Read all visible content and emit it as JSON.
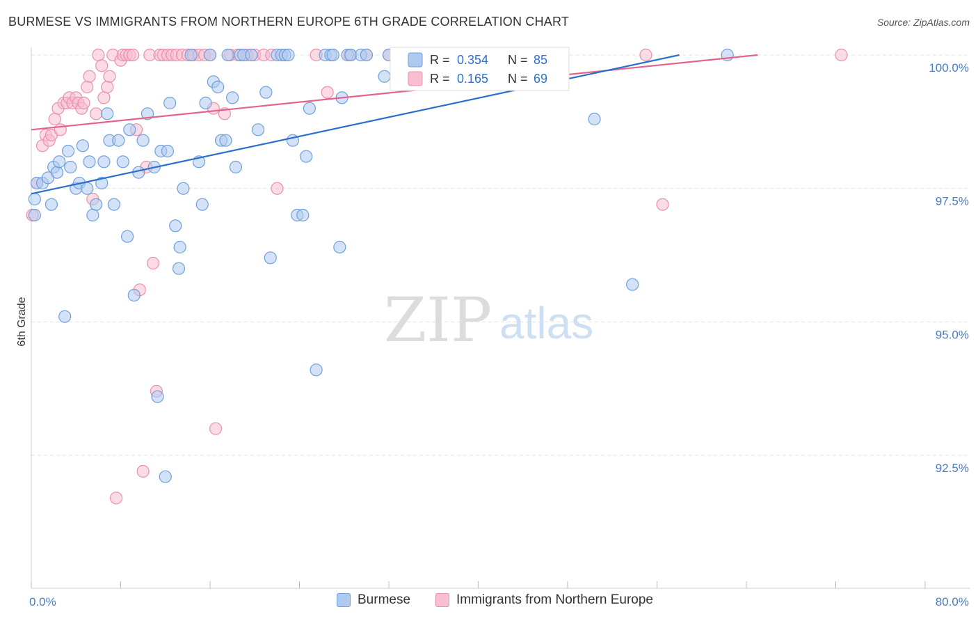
{
  "title": "BURMESE VS IMMIGRANTS FROM NORTHERN EUROPE 6TH GRADE CORRELATION CHART",
  "source": "Source: ZipAtlas.com",
  "watermark": {
    "zip": "ZIP",
    "atlas": "atlas"
  },
  "colors": {
    "burmese_fill": "#aecbef",
    "burmese_stroke": "#6f9fdc",
    "burmese_line": "#2a6fcc",
    "northern_fill": "#f7bfd0",
    "northern_stroke": "#ea8fab",
    "northern_line": "#e4628e",
    "tick_color": "#4a7ec7",
    "grid": "#e3e3e3"
  },
  "legend_box": {
    "burmese": {
      "r_label": "R =",
      "r_value": "0.354",
      "n_label": "N =",
      "n_value": "85"
    },
    "northern": {
      "r_label": "R =",
      "r_value": "0.165",
      "n_label": "N =",
      "n_value": "69"
    }
  },
  "chart_data": {
    "type": "scatter",
    "title": "BURMESE VS IMMIGRANTS FROM NORTHERN EUROPE 6TH GRADE CORRELATION CHART",
    "xlabel": "",
    "ylabel": "6th Grade",
    "xlim": [
      0,
      80
    ],
    "ylim": [
      90.2,
      100.3
    ],
    "x_tick_labels": [
      "0.0%",
      "80.0%"
    ],
    "y_ticks": [
      {
        "value": 100.0,
        "label": "100.0%"
      },
      {
        "value": 97.5,
        "label": "97.5%"
      },
      {
        "value": 95.0,
        "label": "95.0%"
      },
      {
        "value": 92.5,
        "label": "92.5%"
      }
    ],
    "series": [
      {
        "name": "Burmese",
        "r": 0.354,
        "n": 85,
        "trend": {
          "x0": 0.0,
          "y0": 97.4,
          "x1": 58.0,
          "y1": 100.0
        },
        "points": [
          [
            0.3,
            97.3
          ],
          [
            0.3,
            97.0
          ],
          [
            0.5,
            97.6
          ],
          [
            1.0,
            97.6
          ],
          [
            1.5,
            97.7
          ],
          [
            1.8,
            97.2
          ],
          [
            2.0,
            97.9
          ],
          [
            2.3,
            97.8
          ],
          [
            2.5,
            98.0
          ],
          [
            3.0,
            95.1
          ],
          [
            3.3,
            98.2
          ],
          [
            3.5,
            97.9
          ],
          [
            4.0,
            97.5
          ],
          [
            4.3,
            97.6
          ],
          [
            4.6,
            98.3
          ],
          [
            5.0,
            97.5
          ],
          [
            5.2,
            98.0
          ],
          [
            5.5,
            97.0
          ],
          [
            5.8,
            97.2
          ],
          [
            6.3,
            97.6
          ],
          [
            6.5,
            98.0
          ],
          [
            6.8,
            98.9
          ],
          [
            7.0,
            98.4
          ],
          [
            7.4,
            97.2
          ],
          [
            7.8,
            98.4
          ],
          [
            8.2,
            98.0
          ],
          [
            8.6,
            96.6
          ],
          [
            8.8,
            98.6
          ],
          [
            9.2,
            95.5
          ],
          [
            9.6,
            97.8
          ],
          [
            10.0,
            98.4
          ],
          [
            10.4,
            98.9
          ],
          [
            11.0,
            97.9
          ],
          [
            11.3,
            93.6
          ],
          [
            11.6,
            98.2
          ],
          [
            12.0,
            92.1
          ],
          [
            12.2,
            98.2
          ],
          [
            12.4,
            99.1
          ],
          [
            12.9,
            96.8
          ],
          [
            13.2,
            96.0
          ],
          [
            13.3,
            96.4
          ],
          [
            13.6,
            97.5
          ],
          [
            14.3,
            100.0
          ],
          [
            15.0,
            98.0
          ],
          [
            15.3,
            97.2
          ],
          [
            15.6,
            99.1
          ],
          [
            16.0,
            100.0
          ],
          [
            16.3,
            99.5
          ],
          [
            16.7,
            99.4
          ],
          [
            17.0,
            98.4
          ],
          [
            17.4,
            98.4
          ],
          [
            17.6,
            100.0
          ],
          [
            18.0,
            99.2
          ],
          [
            18.3,
            97.9
          ],
          [
            18.7,
            100.0
          ],
          [
            19.0,
            100.0
          ],
          [
            19.7,
            100.0
          ],
          [
            20.3,
            98.6
          ],
          [
            21.0,
            99.3
          ],
          [
            21.4,
            96.2
          ],
          [
            22.0,
            100.0
          ],
          [
            22.4,
            100.0
          ],
          [
            22.7,
            100.0
          ],
          [
            23.0,
            100.0
          ],
          [
            23.4,
            98.4
          ],
          [
            23.8,
            97.0
          ],
          [
            24.3,
            97.0
          ],
          [
            24.6,
            98.1
          ],
          [
            24.9,
            99.0
          ],
          [
            26.3,
            100.0
          ],
          [
            25.5,
            94.1
          ],
          [
            26.8,
            100.0
          ],
          [
            27.0,
            100.0
          ],
          [
            27.6,
            96.4
          ],
          [
            27.8,
            99.2
          ],
          [
            28.3,
            100.0
          ],
          [
            28.6,
            100.0
          ],
          [
            29.5,
            100.0
          ],
          [
            30.0,
            100.0
          ],
          [
            31.6,
            99.6
          ],
          [
            32.0,
            100.0
          ],
          [
            33.2,
            100.0
          ],
          [
            50.4,
            98.8
          ],
          [
            53.8,
            95.7
          ],
          [
            62.3,
            100.0
          ]
        ]
      },
      {
        "name": "Immigrants from Northern Europe",
        "r": 0.165,
        "n": 69,
        "trend": {
          "x0": 0.0,
          "y0": 98.6,
          "x1": 65.0,
          "y1": 100.0
        },
        "points": [
          [
            0.1,
            97.0
          ],
          [
            0.5,
            97.6
          ],
          [
            1.0,
            98.3
          ],
          [
            1.3,
            98.5
          ],
          [
            1.6,
            98.4
          ],
          [
            1.8,
            98.5
          ],
          [
            2.1,
            98.8
          ],
          [
            2.4,
            99.0
          ],
          [
            2.6,
            98.6
          ],
          [
            2.9,
            99.1
          ],
          [
            3.2,
            99.1
          ],
          [
            3.4,
            99.2
          ],
          [
            3.7,
            99.1
          ],
          [
            4.0,
            99.2
          ],
          [
            4.2,
            99.1
          ],
          [
            4.5,
            99.0
          ],
          [
            4.7,
            99.1
          ],
          [
            5.0,
            99.4
          ],
          [
            5.2,
            99.6
          ],
          [
            5.5,
            97.3
          ],
          [
            5.8,
            98.9
          ],
          [
            6.0,
            100.0
          ],
          [
            6.3,
            99.8
          ],
          [
            6.5,
            99.2
          ],
          [
            6.8,
            99.4
          ],
          [
            7.0,
            99.6
          ],
          [
            7.3,
            100.0
          ],
          [
            7.6,
            91.7
          ],
          [
            8.0,
            99.9
          ],
          [
            8.2,
            100.0
          ],
          [
            8.5,
            100.0
          ],
          [
            8.8,
            100.0
          ],
          [
            9.1,
            100.0
          ],
          [
            9.4,
            98.6
          ],
          [
            9.7,
            95.6
          ],
          [
            10.0,
            92.2
          ],
          [
            10.3,
            97.9
          ],
          [
            10.6,
            100.0
          ],
          [
            10.9,
            96.1
          ],
          [
            11.2,
            93.7
          ],
          [
            11.5,
            100.0
          ],
          [
            11.8,
            100.0
          ],
          [
            12.2,
            100.0
          ],
          [
            12.6,
            100.0
          ],
          [
            13.0,
            100.0
          ],
          [
            13.5,
            100.0
          ],
          [
            14.0,
            100.0
          ],
          [
            14.5,
            100.0
          ],
          [
            15.0,
            100.0
          ],
          [
            15.5,
            100.0
          ],
          [
            16.0,
            100.0
          ],
          [
            16.3,
            99.0
          ],
          [
            16.5,
            93.0
          ],
          [
            17.3,
            98.9
          ],
          [
            17.8,
            100.0
          ],
          [
            18.5,
            100.0
          ],
          [
            19.3,
            100.0
          ],
          [
            20.0,
            100.0
          ],
          [
            20.8,
            100.0
          ],
          [
            21.5,
            100.0
          ],
          [
            22.0,
            97.5
          ],
          [
            25.5,
            100.0
          ],
          [
            26.5,
            99.3
          ],
          [
            28.5,
            100.0
          ],
          [
            30.0,
            100.0
          ],
          [
            32.0,
            100.0
          ],
          [
            55.0,
            100.0
          ],
          [
            56.5,
            97.2
          ],
          [
            72.5,
            100.0
          ]
        ]
      }
    ],
    "legend_position": "top-center"
  },
  "bottom_legend": [
    {
      "label": "Burmese"
    },
    {
      "label": "Immigrants from Northern Europe"
    }
  ]
}
